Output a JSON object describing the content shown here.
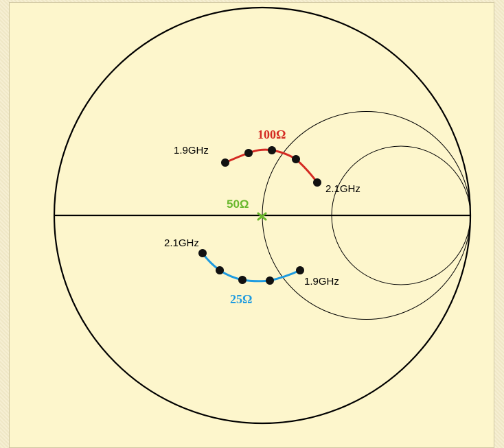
{
  "diagram": {
    "labels": {
      "trace_100": "100Ω",
      "trace_25": "25Ω",
      "center_50": "50Ω",
      "red_start": "1.9GHz",
      "red_end": "2.1GHz",
      "blue_start": "2.1GHz",
      "blue_end": "1.9GHz"
    },
    "colors": {
      "background": "#fdf6cc",
      "trace_100": "#d42a22",
      "trace_25": "#1e9be0",
      "center_50": "#6ab82e",
      "lines": "#000000"
    }
  }
}
